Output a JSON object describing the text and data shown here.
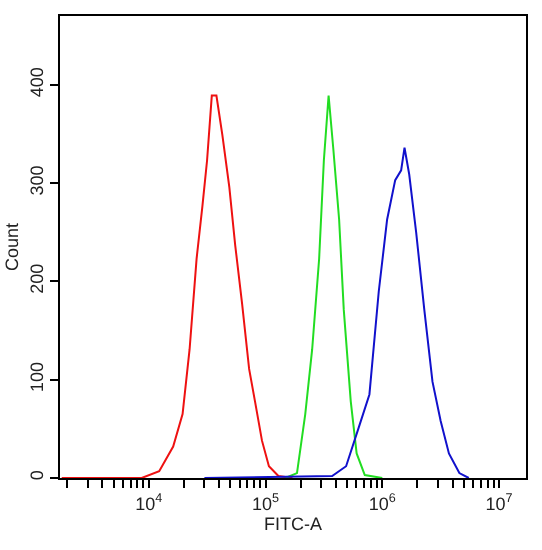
{
  "chart_data": {
    "type": "line",
    "xlabel": "FITC-A",
    "ylabel": "Count",
    "log": "x",
    "grid": false,
    "marker": "none",
    "line_style": "solid",
    "xlim": [
      1740,
      17000000
    ],
    "ylim": [
      0,
      470
    ],
    "yticks": [
      0,
      100,
      200,
      300,
      400
    ],
    "xticks": [
      {
        "value": 2000,
        "label": null
      },
      {
        "value": 3000,
        "label": null
      },
      {
        "value": 4000,
        "label": null
      },
      {
        "value": 5000,
        "label": null
      },
      {
        "value": 6000,
        "label": null
      },
      {
        "value": 7000,
        "label": null
      },
      {
        "value": 8000,
        "label": null
      },
      {
        "value": 9000,
        "label": null
      },
      {
        "value": 10000,
        "label": "10$^{4}$"
      },
      {
        "value": 20000,
        "label": null
      },
      {
        "value": 30000,
        "label": null
      },
      {
        "value": 40000,
        "label": null
      },
      {
        "value": 50000,
        "label": null
      },
      {
        "value": 60000,
        "label": null
      },
      {
        "value": 70000,
        "label": null
      },
      {
        "value": 80000,
        "label": null
      },
      {
        "value": 90000,
        "label": null
      },
      {
        "value": 100000,
        "label": "10$^{5}$"
      },
      {
        "value": 200000,
        "label": null
      },
      {
        "value": 300000,
        "label": null
      },
      {
        "value": 400000,
        "label": null
      },
      {
        "value": 500000,
        "label": null
      },
      {
        "value": 600000,
        "label": null
      },
      {
        "value": 700000,
        "label": null
      },
      {
        "value": 800000,
        "label": null
      },
      {
        "value": 900000,
        "label": null
      },
      {
        "value": 1000000,
        "label": "10$^{6}$"
      },
      {
        "value": 2000000,
        "label": null
      },
      {
        "value": 3000000,
        "label": null
      },
      {
        "value": 4000000,
        "label": null
      },
      {
        "value": 5000000,
        "label": null
      },
      {
        "value": 6000000,
        "label": null
      },
      {
        "value": 7000000,
        "label": null
      },
      {
        "value": 8000000,
        "label": null
      },
      {
        "value": 9000000,
        "label": null
      },
      {
        "value": 10000000,
        "label": "10$^{7}$"
      }
    ],
    "series": [
      {
        "color": "#ee1111",
        "x": [
          1800,
          8710,
          12300,
          16200,
          19500,
          22400,
          25700,
          28800,
          31600,
          34700,
          38000,
          42700,
          49000,
          55000,
          63100,
          72400,
          81300,
          93300,
          107000,
          129000,
          170000
        ],
        "values": [
          0,
          0,
          7,
          32,
          65,
          131,
          223,
          276,
          323,
          389,
          389,
          349,
          296,
          237,
          177,
          111,
          78,
          38,
          12,
          2,
          0
        ]
      },
      {
        "color": "#22dd22",
        "x": [
          148000,
          186000,
          219000,
          251000,
          288000,
          316000,
          347000,
          380000,
          427000,
          468000,
          537000,
          603000,
          708000,
          1000000
        ],
        "values": [
          0,
          5,
          65,
          131,
          223,
          323,
          389,
          336,
          263,
          171,
          78,
          25,
          3,
          0
        ]
      },
      {
        "color": "#1111cc",
        "x": [
          30000,
          372000,
          490000,
          631000,
          776000,
          933000,
          1100000,
          1290000,
          1450000,
          1550000,
          1700000,
          1950000,
          2290000,
          2690000,
          3160000,
          3720000,
          4570000,
          5500000
        ],
        "values": [
          0,
          2,
          12,
          52,
          85,
          190,
          263,
          303,
          313,
          336,
          309,
          250,
          171,
          98,
          58,
          25,
          5,
          0
        ]
      }
    ]
  }
}
